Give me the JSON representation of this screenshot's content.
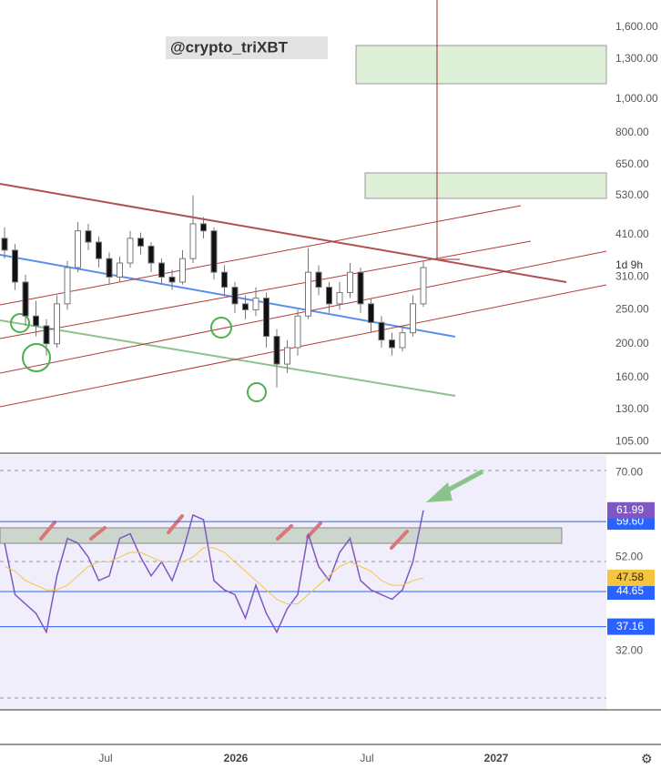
{
  "watermark": "@crypto_triXBT",
  "countdown": "1d 9h",
  "time_axis": {
    "labels": [
      "Jul",
      "2026",
      "Jul",
      "2027"
    ]
  },
  "chart_data": [
    {
      "type": "candlestick",
      "log_scale": true,
      "up_color": "#ffffff",
      "down_color": "#111111",
      "open": [
        400,
        370,
        300,
        240,
        225,
        200,
        260,
        330,
        420,
        390,
        350,
        310,
        340,
        400,
        380,
        340,
        310,
        300,
        350,
        440,
        420,
        320,
        290,
        260,
        250,
        270,
        210,
        175,
        195,
        240,
        320,
        290,
        260,
        280,
        320,
        260,
        230,
        205,
        195,
        215,
        260
      ],
      "high": [
        430,
        385,
        315,
        265,
        235,
        275,
        345,
        445,
        440,
        405,
        365,
        355,
        420,
        415,
        390,
        350,
        325,
        370,
        530,
        460,
        430,
        335,
        300,
        275,
        290,
        280,
        220,
        205,
        250,
        375,
        335,
        300,
        300,
        340,
        330,
        270,
        240,
        215,
        225,
        275,
        345
      ],
      "low": [
        350,
        285,
        225,
        210,
        185,
        195,
        250,
        320,
        370,
        330,
        295,
        300,
        330,
        360,
        320,
        295,
        285,
        295,
        340,
        400,
        305,
        275,
        245,
        235,
        240,
        195,
        150,
        165,
        185,
        235,
        275,
        245,
        250,
        270,
        245,
        215,
        195,
        185,
        190,
        210,
        255
      ],
      "close": [
        370,
        300,
        240,
        225,
        200,
        260,
        330,
        420,
        390,
        350,
        310,
        340,
        400,
        380,
        340,
        310,
        300,
        350,
        440,
        420,
        320,
        290,
        260,
        250,
        270,
        210,
        175,
        195,
        240,
        320,
        290,
        260,
        280,
        320,
        260,
        230,
        205,
        195,
        215,
        260,
        330
      ],
      "ylim": [
        98,
        1915
      ],
      "yticks": [
        {
          "value": 1600,
          "label": "1,600.00"
        },
        {
          "value": 1300,
          "label": "1,300.00"
        },
        {
          "value": 1000,
          "label": "1,000.00"
        },
        {
          "value": 800,
          "label": "800.00"
        },
        {
          "value": 650,
          "label": "650.00"
        },
        {
          "value": 530,
          "label": "530.00"
        },
        {
          "value": 410,
          "label": "410.00"
        },
        {
          "value": 310,
          "label": "310.00"
        },
        {
          "value": 250,
          "label": "250.00"
        },
        {
          "value": 200,
          "label": "200.00"
        },
        {
          "value": 160,
          "label": "160.00"
        },
        {
          "value": 130,
          "label": "130.00"
        },
        {
          "value": 105,
          "label": "105.00"
        }
      ]
    },
    {
      "type": "line",
      "series": [
        {
          "color": "#7e57c2",
          "tag_label": "61.99",
          "values": [
            55,
            44,
            42,
            40,
            36,
            48,
            56,
            55,
            52,
            47,
            48,
            56,
            57,
            52,
            48,
            51,
            47,
            53,
            61,
            60,
            47,
            45,
            44,
            39,
            46,
            40,
            36,
            41,
            44,
            57,
            50,
            47,
            53,
            56,
            47,
            45,
            44,
            43,
            45,
            51,
            61.99
          ]
        },
        {
          "color": "#f5c542",
          "tag_label": "47.58",
          "values": [
            50,
            49,
            47,
            46,
            45,
            45,
            46,
            48,
            50,
            51,
            51,
            52,
            53,
            53,
            52,
            51,
            51,
            51,
            52,
            54,
            54,
            53,
            51,
            49,
            47,
            45,
            43,
            42,
            42,
            44,
            46,
            48,
            50,
            51,
            50,
            49,
            47,
            46,
            46,
            47,
            47.58
          ]
        }
      ],
      "levels": {
        "color": "#2962ff",
        "values": [
          59.6,
          44.65,
          37.16
        ],
        "value_labels": [
          "59.60",
          "44.65",
          "37.16"
        ]
      },
      "ylim": [
        19.4,
        73.8
      ],
      "yticks": [
        {
          "value": 70,
          "label": "70.00"
        },
        {
          "value": 52,
          "label": "52.00"
        },
        {
          "value": 32,
          "label": "32.00"
        }
      ]
    }
  ]
}
